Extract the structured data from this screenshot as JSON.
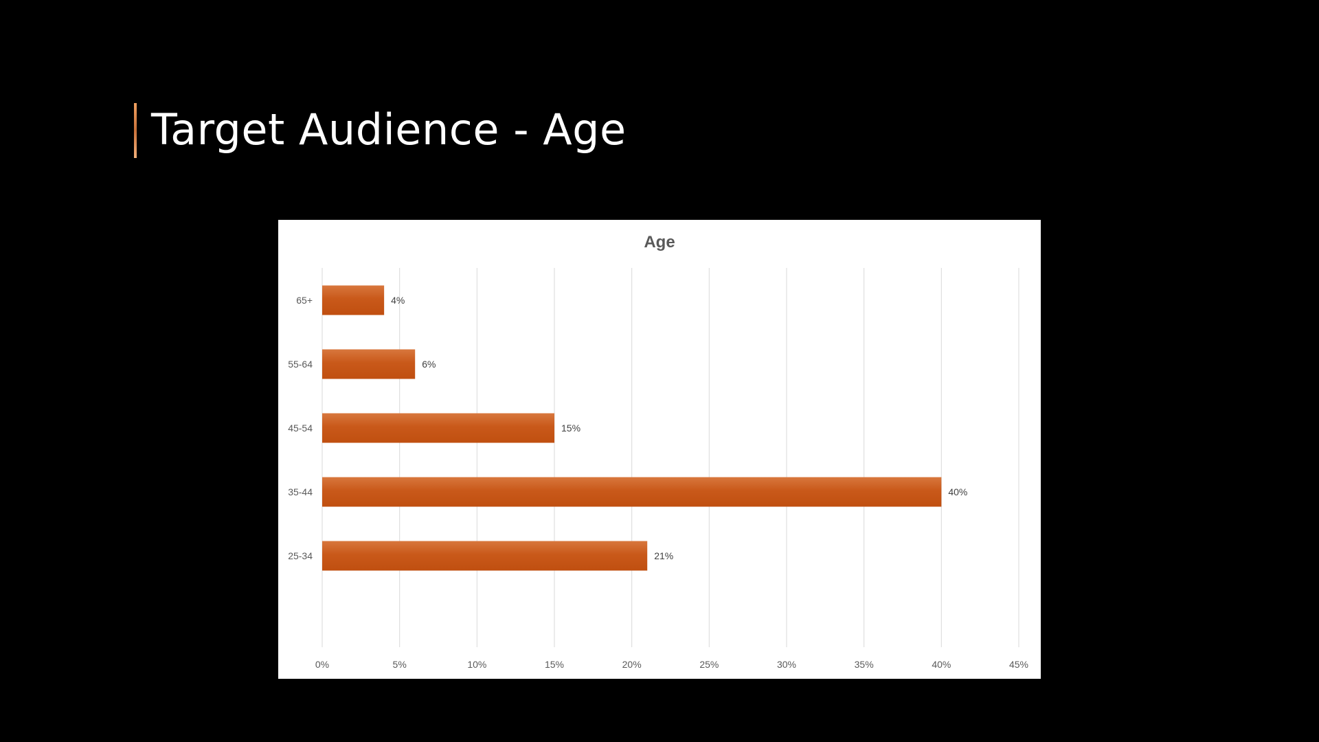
{
  "slide": {
    "title": "Target Audience - Age"
  },
  "colors": {
    "background": "#000000",
    "bar": "#c55a11",
    "accent": "#e8955a"
  },
  "chart_data": {
    "type": "bar",
    "orientation": "horizontal",
    "title": "Age",
    "xlabel": "",
    "ylabel": "",
    "categories": [
      "65+",
      "55-64",
      "45-54",
      "35-44",
      "25-34"
    ],
    "values": [
      4,
      6,
      15,
      40,
      21
    ],
    "data_labels": [
      "4%",
      "6%",
      "15%",
      "40%",
      "21%"
    ],
    "xlim": [
      0,
      45
    ],
    "xticks": [
      0,
      5,
      10,
      15,
      20,
      25,
      30,
      35,
      40,
      45
    ],
    "xtick_labels": [
      "0%",
      "5%",
      "10%",
      "15%",
      "20%",
      "25%",
      "30%",
      "35%",
      "40%",
      "45%"
    ],
    "grid": "vertical",
    "legend": "none"
  }
}
